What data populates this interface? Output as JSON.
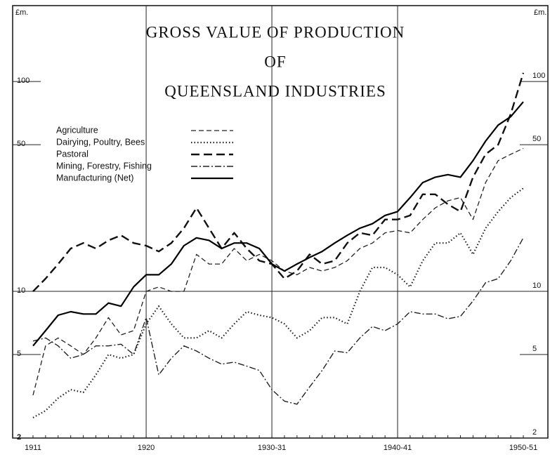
{
  "chart_data": {
    "type": "line",
    "title": [
      "GROSS VALUE OF PRODUCTION",
      "OF",
      "QUEENSLAND INDUSTRIES"
    ],
    "y_label": "£m.",
    "categories": [
      "1911",
      null,
      null,
      null,
      null,
      null,
      null,
      null,
      null,
      "1920",
      null,
      null,
      null,
      null,
      null,
      null,
      null,
      null,
      null,
      "1930-31",
      null,
      null,
      null,
      null,
      null,
      null,
      null,
      null,
      null,
      "1940-41",
      null,
      null,
      null,
      null,
      null,
      null,
      null,
      null,
      null,
      "1950-51"
    ],
    "log_scale": true,
    "ylim": [
      2,
      230
    ],
    "yticks": [
      2,
      5,
      10,
      50,
      100
    ],
    "ygrid": [
      10
    ],
    "xgrid": true,
    "legend": "upper left",
    "series": [
      {
        "name": "Agriculture",
        "color": "#222",
        "dash": "7 4",
        "width": 1.3,
        "values": [
          3.2,
          5.5,
          6,
          5.5,
          5.0,
          6,
          7.5,
          6.2,
          6.5,
          10,
          10.5,
          10,
          10,
          15,
          13.5,
          13.5,
          16,
          14,
          15,
          14,
          12.5,
          12,
          13,
          12.5,
          13,
          14,
          16,
          17,
          19,
          19.5,
          19,
          22,
          25,
          27,
          28,
          22,
          33,
          42,
          45,
          48
        ]
      },
      {
        "name": "Dairying, Poultry, Bees",
        "color": "#222",
        "dash": "1.5 3",
        "width": 2.2,
        "values": [
          2.5,
          2.7,
          3.1,
          3.4,
          3.3,
          4,
          5,
          4.8,
          5,
          7,
          8.5,
          7,
          6,
          6,
          6.5,
          6,
          7,
          8,
          7.7,
          7.5,
          7,
          6,
          6.5,
          7.5,
          7.5,
          7,
          10,
          13,
          13,
          12,
          10.5,
          14,
          17,
          17,
          19,
          15,
          20,
          24,
          28,
          31
        ]
      },
      {
        "name": "Pastoral",
        "color": "#111",
        "dash": "12 6",
        "width": 2.4,
        "values": [
          10,
          11.5,
          13.5,
          16,
          17,
          16,
          17.5,
          18.5,
          17,
          16.5,
          15.5,
          17,
          20,
          25,
          20,
          16,
          19,
          16,
          14,
          13.5,
          11.5,
          12.5,
          15,
          13.5,
          14,
          17,
          19,
          18.5,
          22,
          22,
          23,
          29,
          29,
          26,
          24,
          35,
          45,
          50,
          70,
          110
        ]
      },
      {
        "name": "Mining, Forestry, Fishing",
        "color": "#222",
        "dash": "9 3 2 3",
        "width": 1.4,
        "values": [
          5.8,
          6,
          5.5,
          4.8,
          5,
          5.5,
          5.5,
          5.6,
          5,
          7.5,
          4,
          4.8,
          5.5,
          5.2,
          4.8,
          4.5,
          4.6,
          4.4,
          4.2,
          3.4,
          3,
          2.9,
          3.5,
          4.2,
          5.2,
          5.1,
          6,
          6.8,
          6.5,
          7,
          8,
          7.8,
          7.8,
          7.4,
          7.6,
          9,
          11,
          11.5,
          14,
          18
        ]
      },
      {
        "name": "Manufacturing (Net)",
        "color": "#000",
        "dash": "none",
        "width": 2.2,
        "values": [
          5.5,
          6.5,
          7.7,
          8.0,
          7.8,
          7.8,
          8.8,
          8.5,
          10.5,
          12,
          12,
          13.5,
          16.5,
          18,
          17.5,
          16,
          17,
          17,
          16,
          13.5,
          12.5,
          13.5,
          14.5,
          15.5,
          17,
          18.5,
          20,
          21,
          23,
          24,
          28,
          33,
          35,
          36,
          35,
          42,
          52,
          62,
          68,
          80
        ]
      }
    ]
  }
}
